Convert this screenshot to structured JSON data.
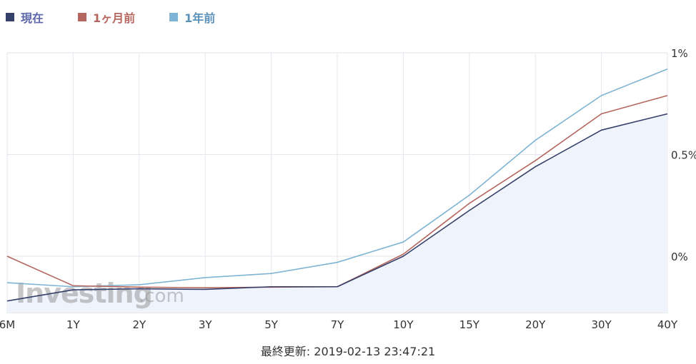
{
  "legend": [
    {
      "name": "現在",
      "color": "#35406b",
      "label_color": "#5b67a8"
    },
    {
      "name": "1ヶ月前",
      "color": "#b5675f",
      "label_color": "#b5675f"
    },
    {
      "name": "1年前",
      "color": "#7eb4d4",
      "label_color": "#5a91b8"
    }
  ],
  "watermark": {
    "brand": "Investing",
    "suffix": ".com"
  },
  "footer": {
    "updated": "最終更新: 2019-02-13 23:47:21"
  },
  "chart_data": {
    "type": "line",
    "categories": [
      "6M",
      "1Y",
      "2Y",
      "3Y",
      "5Y",
      "7Y",
      "10Y",
      "15Y",
      "20Y",
      "30Y",
      "40Y"
    ],
    "y_ticks": [
      {
        "value": 1.0,
        "label": "1%"
      },
      {
        "value": 0.5,
        "label": "0.5%"
      },
      {
        "value": 0.0,
        "label": "0%"
      }
    ],
    "ylim": [
      -0.28,
      1.0
    ],
    "grid": true,
    "legend_position": "top-left",
    "series": [
      {
        "name": "1年前",
        "color": "#7eb4d4",
        "values": [
          -0.13,
          -0.15,
          -0.14,
          -0.105,
          -0.085,
          -0.03,
          0.07,
          0.3,
          0.57,
          0.79,
          0.92
        ]
      },
      {
        "name": "1ヶ月前",
        "color": "#b5675f",
        "values": [
          0.0,
          -0.145,
          -0.152,
          -0.155,
          -0.152,
          -0.15,
          0.01,
          0.26,
          0.47,
          0.7,
          0.79
        ]
      },
      {
        "name": "現在",
        "color": "#35406b",
        "fill": "#eef3fc",
        "values": [
          -0.22,
          -0.165,
          -0.16,
          -0.163,
          -0.15,
          -0.15,
          0.0,
          0.225,
          0.44,
          0.62,
          0.7
        ]
      }
    ]
  }
}
